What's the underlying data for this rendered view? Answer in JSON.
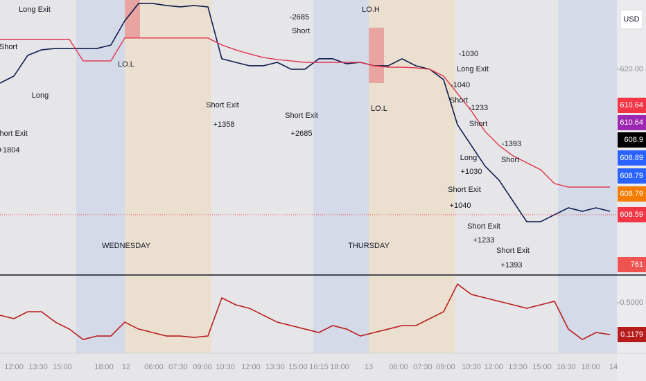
{
  "chart_data": [
    {
      "type": "line",
      "xlim": [
        0,
        44.5
      ],
      "xticks": [
        {
          "value": 1,
          "label": "12:00"
        },
        {
          "value": 2.75,
          "label": "13:30"
        },
        {
          "value": 4.5,
          "label": "15:00"
        },
        {
          "value": 7.5,
          "label": "18:00"
        },
        {
          "value": 9.1,
          "label": "12"
        },
        {
          "value": 11.1,
          "label": "06:00"
        },
        {
          "value": 12.85,
          "label": "07:30"
        },
        {
          "value": 14.6,
          "label": "09:00"
        },
        {
          "value": 16.25,
          "label": "10:30"
        },
        {
          "value": 18.1,
          "label": "12:00"
        },
        {
          "value": 19.85,
          "label": "13:30"
        },
        {
          "value": 21.5,
          "label": "15:00"
        },
        {
          "value": 23,
          "label": "16:15"
        },
        {
          "value": 24.5,
          "label": "18:00"
        },
        {
          "value": 26.6,
          "label": "13"
        },
        {
          "value": 28.75,
          "label": "06:00"
        },
        {
          "value": 30.5,
          "label": "07:30"
        },
        {
          "value": 32.15,
          "label": "09:00"
        },
        {
          "value": 34,
          "label": "10:30"
        },
        {
          "value": 35.6,
          "label": "12:00"
        },
        {
          "value": 37.35,
          "label": "13:30"
        },
        {
          "value": 39.1,
          "label": "15:00"
        },
        {
          "value": 40.85,
          "label": "16:30"
        },
        {
          "value": 42.6,
          "label": "18:00"
        },
        {
          "value": 44.25,
          "label": "14"
        }
      ],
      "ylim": [
        603.97,
        625.43
      ],
      "yticks": [
        {
          "value": 620,
          "label": "620.00"
        }
      ],
      "currency": "USD",
      "series": [
        {
          "color": "#0d1b4c",
          "values": [
            618.91,
            619.46,
            621.09,
            621.52,
            621.63,
            621.63,
            621.63,
            621.63,
            621.9,
            623.8,
            625.16,
            625.16,
            625.0,
            624.89,
            625.0,
            624.89,
            620.82,
            620.54,
            620.27,
            620.27,
            620.54,
            620.0,
            620.0,
            620.82,
            620.82,
            620.43,
            620.54,
            620.27,
            620.27,
            620.82,
            620.27,
            620.0,
            619.18,
            615.65,
            614.02,
            612.39,
            611.3,
            609.67,
            608.04,
            608.04,
            608.59,
            609.13,
            608.86,
            609.13,
            608.86
          ]
        },
        {
          "color": "#e0334a",
          "values": [
            622.34,
            622.34,
            622.34,
            622.34,
            622.34,
            622.34,
            620.65,
            620.65,
            620.65,
            622.45,
            622.45,
            622.45,
            622.45,
            622.45,
            622.45,
            622.45,
            621.9,
            621.52,
            621.2,
            620.92,
            620.76,
            620.65,
            620.54,
            620.54,
            620.54,
            620.54,
            620.54,
            620.27,
            620.16,
            620.16,
            620.11,
            620.0,
            619.46,
            618.1,
            616.74,
            615.11,
            614.02,
            613.21,
            612.66,
            612.12,
            611.03,
            610.76,
            610.76,
            610.76,
            610.76
          ]
        }
      ],
      "badges": [
        {
          "value": 610.64,
          "color": "#f23645"
        },
        {
          "value": 610.64,
          "color": "#9c27b0"
        },
        {
          "value": 608.9,
          "color": "#000000"
        },
        {
          "value": 608.89,
          "color": "#2962ff"
        },
        {
          "value": 608.79,
          "color": "#2962ff"
        },
        {
          "value": 608.79,
          "color": "#f57c00"
        },
        {
          "value": 608.59,
          "color": "#f23645"
        },
        {
          "value": 761,
          "color": "#ef5350"
        }
      ],
      "annotations": [
        "LO.L",
        "LO.H",
        "LO.L",
        "WEDNESDAY",
        "THURSDAY",
        "-1030",
        "Long Exit",
        "-1040",
        "Short",
        "-1233",
        "Short",
        "-1393",
        "Short",
        "Long",
        "+1030",
        "Short Exit",
        "+1040",
        "Short Exit",
        "+1233",
        "Short Exit",
        "+1393",
        "-2685",
        "Short",
        "Short Exit",
        "+2685",
        "Short Exit",
        "+1358",
        "Long Exit",
        "Short",
        "Long",
        "Short Exit",
        "+1804"
      ]
    },
    {
      "type": "line",
      "ylim": [
        -0.1065,
        0.8076
      ],
      "yticks": [
        {
          "value": 0.5,
          "label": "0.5000"
        }
      ],
      "series": [
        {
          "color": "#b71c1c",
          "values": [
            0.35,
            0.309,
            0.392,
            0.392,
            0.267,
            0.184,
            0.059,
            0.101,
            0.101,
            0.267,
            0.184,
            0.143,
            0.101,
            0.101,
            0.084,
            0.101,
            0.558,
            0.475,
            0.433,
            0.35,
            0.267,
            0.226,
            0.184,
            0.143,
            0.226,
            0.184,
            0.101,
            0.143,
            0.184,
            0.226,
            0.226,
            0.309,
            0.392,
            0.724,
            0.6,
            0.558,
            0.517,
            0.475,
            0.433,
            0.475,
            0.517,
            0.184,
            0.059,
            0.143,
            0.118
          ]
        }
      ],
      "badges": [
        {
          "value": 0.1179,
          "color": "#b71c1c"
        }
      ]
    }
  ]
}
